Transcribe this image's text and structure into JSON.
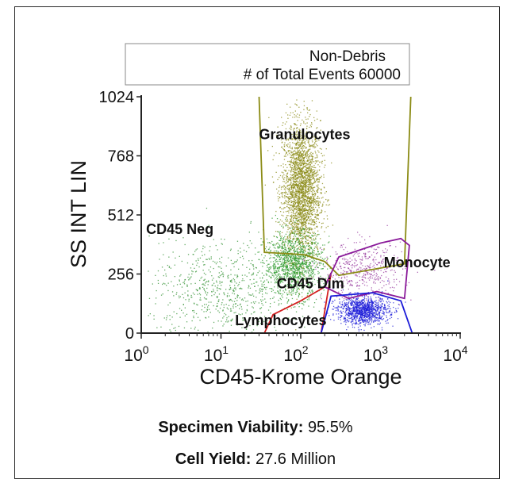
{
  "chart_data": {
    "type": "scatter",
    "legend_box": {
      "line1": "Non-Debris",
      "line2": "# of Total Events 60000"
    },
    "ylabel": "SS INT LIN",
    "xlabel": "CD45-Krome Orange",
    "x_scale": "log",
    "xlim": [
      1,
      10000
    ],
    "ylim": [
      0,
      1024
    ],
    "y_ticks": [
      "0",
      "256",
      "512",
      "768",
      "1024"
    ],
    "x_ticks": [
      {
        "base": "10",
        "exp": "0"
      },
      {
        "base": "10",
        "exp": "1"
      },
      {
        "base": "10",
        "exp": "2"
      },
      {
        "base": "10",
        "exp": "3"
      },
      {
        "base": "10",
        "exp": "4"
      }
    ],
    "populations": [
      {
        "name": "Granulocytes",
        "color": "#8a8a14",
        "center": [
          100,
          620
        ],
        "spread": [
          0.12,
          150
        ],
        "count": 2600
      },
      {
        "name": "CD45 Neg",
        "color": "#2f8f2f",
        "center": [
          10,
          180
        ],
        "spread": [
          0.45,
          110
        ],
        "count": 700
      },
      {
        "name": "CD45 Dim",
        "color": "#2b9a2b",
        "center": [
          80,
          300
        ],
        "spread": [
          0.18,
          70
        ],
        "count": 1200
      },
      {
        "name": "Monocytes",
        "color": "#9a3fa0",
        "center": [
          600,
          270
        ],
        "spread": [
          0.25,
          60
        ],
        "count": 450
      },
      {
        "name": "Lymphocytes",
        "color": "#1c1cd8",
        "center": [
          600,
          100
        ],
        "spread": [
          0.16,
          30
        ],
        "count": 1100
      }
    ],
    "labels": [
      {
        "text": "Granulocytes",
        "x": 30,
        "y": 840
      },
      {
        "text": "CD45 Neg",
        "x": 1.15,
        "y": 430
      },
      {
        "text": "CD45 Dim",
        "x": 50,
        "y": 195
      },
      {
        "text": "Monocyte",
        "x": 1100,
        "y": 285
      },
      {
        "text": "Lymphocytes",
        "x": 15,
        "y": 35
      }
    ],
    "gates": [
      {
        "name": "Granulocytes gate",
        "color": "#8b8b14",
        "points": [
          [
            30,
            1024
          ],
          [
            35,
            350
          ],
          [
            110,
            340
          ],
          [
            200,
            310
          ],
          [
            300,
            250
          ],
          [
            2000,
            300
          ],
          [
            2400,
            1024
          ]
        ]
      },
      {
        "name": "Lymphocyte gate (red)",
        "color": "#d42020",
        "points": [
          [
            35,
            0
          ],
          [
            45,
            80
          ],
          [
            100,
            140
          ],
          [
            200,
            200
          ],
          [
            240,
            260
          ],
          [
            180,
            0
          ]
        ]
      },
      {
        "name": "Monocyte gate",
        "color": "#8a1a9a",
        "points": [
          [
            200,
            200
          ],
          [
            300,
            330
          ],
          [
            1000,
            390
          ],
          [
            1800,
            410
          ],
          [
            2300,
            380
          ],
          [
            2000,
            150
          ],
          [
            900,
            180
          ],
          [
            400,
            150
          ],
          [
            200,
            200
          ]
        ]
      },
      {
        "name": "Lymphocyte gate (blue)",
        "color": "#1c1cd8",
        "points": [
          [
            180,
            0
          ],
          [
            240,
            160
          ],
          [
            800,
            175
          ],
          [
            1800,
            140
          ],
          [
            2500,
            0
          ]
        ]
      }
    ]
  },
  "footer": {
    "viability_label": "Specimen Viability:",
    "viability_value": "95.5%",
    "yield_label": "Cell Yield:",
    "yield_value": "27.6 Million"
  }
}
